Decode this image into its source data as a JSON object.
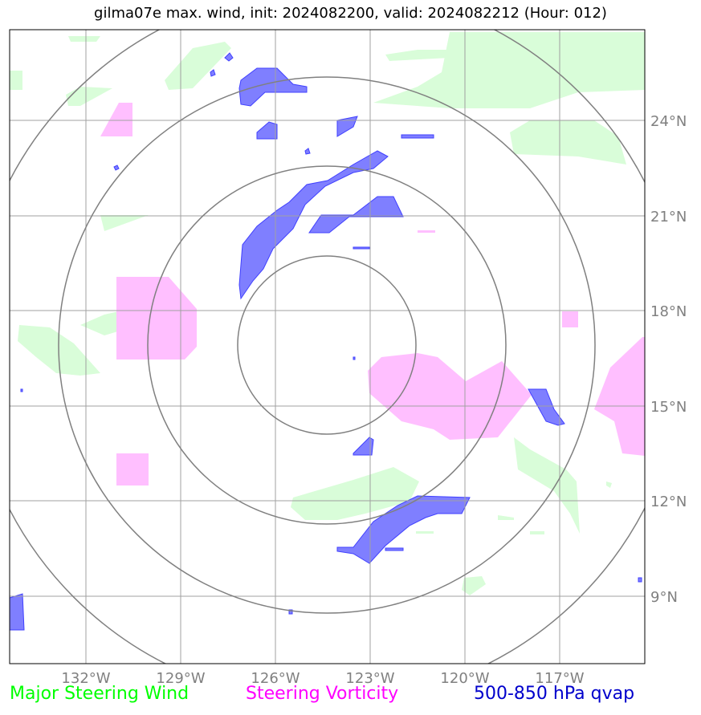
{
  "title": "gilma07e max. wind, init: 2024082200, valid: 2024082212 (Hour: 012)",
  "lon_labels": [
    "132°W",
    "129°W",
    "126°W",
    "123°W",
    "120°W",
    "117°W"
  ],
  "lat_labels": [
    "24°N",
    "21°N",
    "18°N",
    "15°N",
    "12°N",
    "9°N"
  ],
  "legend": [
    {
      "label": "Major Steering Wind",
      "color": "#00ff00"
    },
    {
      "label": "Steering Vorticity",
      "color": "#ff00ff"
    },
    {
      "label": "500-850 hPa qvap",
      "color": "#0000cc"
    }
  ],
  "colors": {
    "wind_fill": "#d9fdd9",
    "vorticity_fill": "#ffbfff",
    "qvap_fill": "#7f7fff",
    "qvap_edge": "#4040ff",
    "grid": "#a0a0a0",
    "rings": "#808080"
  }
}
